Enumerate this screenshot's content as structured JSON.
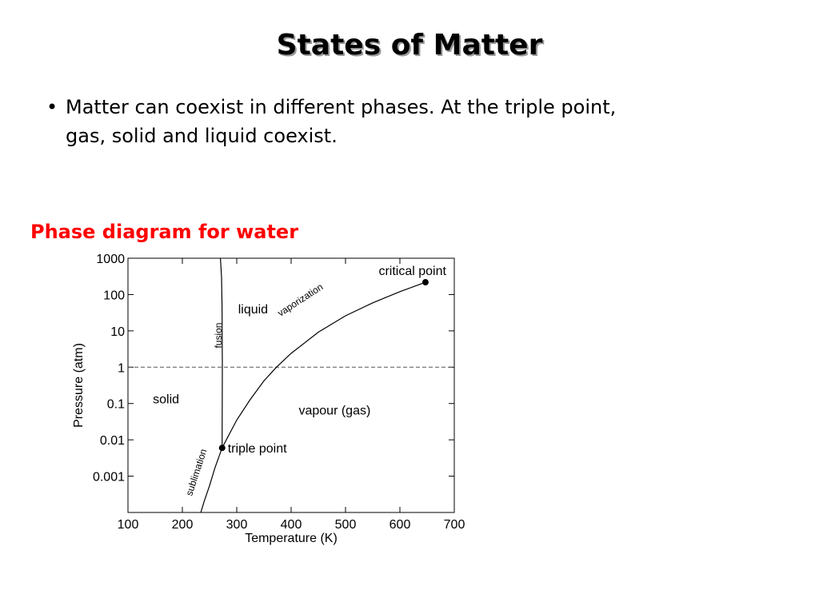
{
  "slide": {
    "title": "States of Matter",
    "bullet_mark": "•",
    "bullet_text": "Matter can coexist in different phases.  At the triple point, gas, solid and liquid coexist.",
    "caption": "Phase diagram for water",
    "caption_color": "#ff0000"
  },
  "chart_data": {
    "type": "line",
    "title": "",
    "xlabel": "Temperature (K)",
    "ylabel": "Pressure (atm)",
    "xlim": [
      100,
      700
    ],
    "ylim": [
      0.0001,
      1000
    ],
    "y_scale": "log",
    "x_ticks": [
      100,
      200,
      300,
      400,
      500,
      600,
      700
    ],
    "y_ticks": [
      {
        "value": 0.001,
        "label": "0.001"
      },
      {
        "value": 0.01,
        "label": "0.01"
      },
      {
        "value": 0.1,
        "label": "0.1"
      },
      {
        "value": 1,
        "label": "1"
      },
      {
        "value": 10,
        "label": "10"
      },
      {
        "value": 100,
        "label": "100"
      },
      {
        "value": 1000,
        "label": "1000"
      }
    ],
    "series": [
      {
        "label": "vaporization",
        "points": [
          [
            273.16,
            0.006
          ],
          [
            300,
            0.035
          ],
          [
            325,
            0.13
          ],
          [
            350,
            0.42
          ],
          [
            373,
            1
          ],
          [
            400,
            2.4
          ],
          [
            450,
            9.2
          ],
          [
            500,
            26
          ],
          [
            550,
            59
          ],
          [
            600,
            120
          ],
          [
            647,
            218
          ]
        ]
      },
      {
        "label": "fusion",
        "points": [
          [
            273.16,
            0.006
          ],
          [
            273.5,
            1
          ],
          [
            273,
            50
          ],
          [
            272,
            300
          ],
          [
            270,
            1000
          ]
        ]
      },
      {
        "label": "sublimation",
        "points": [
          [
            228,
            5e-05
          ],
          [
            240,
            0.0002
          ],
          [
            250,
            0.00055
          ],
          [
            260,
            0.0017
          ],
          [
            273.16,
            0.006
          ]
        ]
      }
    ],
    "reference_line": {
      "y": 1,
      "style": "dashed"
    },
    "annotations": [
      {
        "kind": "point",
        "text": "triple point",
        "x": 273.16,
        "y": 0.006
      },
      {
        "kind": "point",
        "text": "critical point",
        "x": 647,
        "y": 218
      },
      {
        "kind": "region",
        "text": "liquid",
        "x": 330,
        "y": 30
      },
      {
        "kind": "region",
        "text": "solid",
        "x": 170,
        "y": 0.1
      },
      {
        "kind": "region",
        "text": "vapour (gas)",
        "x": 480,
        "y": 0.05
      }
    ],
    "grid": false,
    "legend": "none"
  }
}
